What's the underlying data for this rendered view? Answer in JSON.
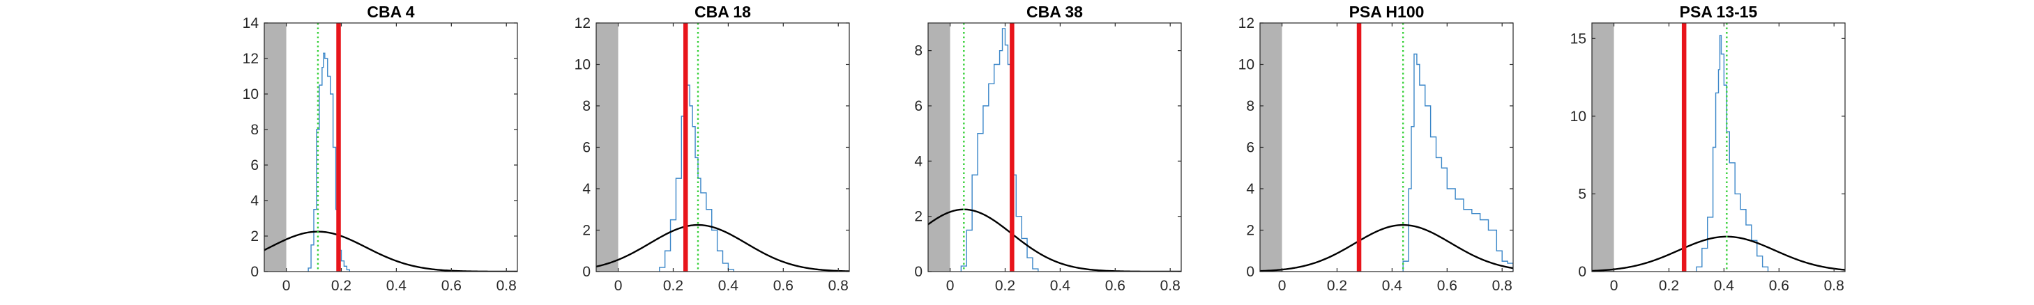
{
  "figure": {
    "background": "#ffffff",
    "axis_color": "#262626",
    "shade_color": "#b3b3b3",
    "hist_color": "#3a86c8",
    "gauss_color": "#000000",
    "red_color": "#e8141b",
    "green_color": "#39d13b"
  },
  "chart_data": [
    {
      "type": "line",
      "title": "CBA 4",
      "xlim": [
        -0.08,
        0.84
      ],
      "ylim": [
        0,
        14
      ],
      "xticks": [
        0,
        0.2,
        0.4,
        0.6,
        0.8
      ],
      "xtick_labels": [
        "0",
        "0.2",
        "0.4",
        "0.6",
        "0.8"
      ],
      "yticks": [
        0,
        2,
        4,
        6,
        8,
        10,
        12,
        14
      ],
      "ytick_labels": [
        "0",
        "2",
        "4",
        "6",
        "8",
        "10",
        "12",
        "14"
      ],
      "shaded_region": [
        -0.08,
        0
      ],
      "red_line_x": 0.19,
      "green_line_x": 0.115,
      "gaussian": {
        "mu": 0.115,
        "sigma": 0.175,
        "peak": 2.25
      },
      "histogram": {
        "x": [
          0.08,
          0.09,
          0.1,
          0.11,
          0.12,
          0.13,
          0.135,
          0.14,
          0.15,
          0.16,
          0.17,
          0.18,
          0.19,
          0.2,
          0.21,
          0.22
        ],
        "values": [
          0.2,
          1.5,
          3.5,
          8.0,
          10.5,
          11.5,
          12.3,
          12.0,
          11.0,
          10.0,
          7.0,
          3.5,
          1.2,
          0.6,
          0.3,
          0.1
        ]
      },
      "series": [
        {
          "name": "histogram",
          "color": "#3a86c8"
        },
        {
          "name": "gaussian",
          "color": "#000000"
        },
        {
          "name": "red threshold",
          "color": "#e8141b"
        },
        {
          "name": "green reference",
          "color": "#39d13b"
        }
      ]
    },
    {
      "type": "line",
      "title": "CBA 18",
      "xlim": [
        -0.08,
        0.84
      ],
      "ylim": [
        0,
        12
      ],
      "xticks": [
        0,
        0.2,
        0.4,
        0.6,
        0.8
      ],
      "xtick_labels": [
        "0",
        "0.2",
        "0.4",
        "0.6",
        "0.8"
      ],
      "yticks": [
        0,
        2,
        4,
        6,
        8,
        10,
        12
      ],
      "ytick_labels": [
        "0",
        "2",
        "4",
        "6",
        "8",
        "10",
        "12"
      ],
      "shaded_region": [
        -0.08,
        0
      ],
      "red_line_x": 0.245,
      "green_line_x": 0.29,
      "gaussian": {
        "mu": 0.29,
        "sigma": 0.175,
        "peak": 2.25
      },
      "histogram": {
        "x": [
          0.15,
          0.17,
          0.19,
          0.21,
          0.23,
          0.24,
          0.25,
          0.26,
          0.27,
          0.28,
          0.29,
          0.3,
          0.32,
          0.34,
          0.36,
          0.38,
          0.4
        ],
        "values": [
          0.2,
          1.0,
          2.5,
          4.5,
          7.5,
          8.7,
          9.0,
          8.0,
          7.0,
          5.5,
          4.5,
          3.8,
          3.0,
          2.0,
          1.0,
          0.4,
          0.1
        ]
      },
      "series": [
        {
          "name": "histogram",
          "color": "#3a86c8"
        },
        {
          "name": "gaussian",
          "color": "#000000"
        },
        {
          "name": "red threshold",
          "color": "#e8141b"
        },
        {
          "name": "green reference",
          "color": "#39d13b"
        }
      ]
    },
    {
      "type": "line",
      "title": "CBA 38",
      "xlim": [
        -0.08,
        0.84
      ],
      "ylim": [
        0,
        9
      ],
      "xticks": [
        0,
        0.2,
        0.4,
        0.6,
        0.8
      ],
      "xtick_labels": [
        "0",
        "0.2",
        "0.4",
        "0.6",
        "0.8"
      ],
      "yticks": [
        0,
        2,
        4,
        6,
        8
      ],
      "ytick_labels": [
        "0",
        "2",
        "4",
        "6",
        "8"
      ],
      "shaded_region": [
        -0.08,
        0
      ],
      "red_line_x": 0.225,
      "green_line_x": 0.05,
      "gaussian": {
        "mu": 0.05,
        "sigma": 0.175,
        "peak": 2.25
      },
      "histogram": {
        "x": [
          0.04,
          0.06,
          0.08,
          0.1,
          0.12,
          0.14,
          0.16,
          0.18,
          0.19,
          0.2,
          0.21,
          0.22,
          0.23,
          0.24,
          0.26,
          0.28,
          0.3
        ],
        "values": [
          0.2,
          1.5,
          3.5,
          5.0,
          6.0,
          6.8,
          7.5,
          8.0,
          8.8,
          8.2,
          7.5,
          6.0,
          3.5,
          2.0,
          1.2,
          0.5,
          0.1
        ]
      },
      "series": [
        {
          "name": "histogram",
          "color": "#3a86c8"
        },
        {
          "name": "gaussian",
          "color": "#000000"
        },
        {
          "name": "red threshold",
          "color": "#e8141b"
        },
        {
          "name": "green reference",
          "color": "#39d13b"
        }
      ]
    },
    {
      "type": "line",
      "title": "PSA H100",
      "xlim": [
        -0.08,
        0.84
      ],
      "ylim": [
        0,
        12
      ],
      "xticks": [
        0,
        0.2,
        0.4,
        0.6,
        0.8
      ],
      "xtick_labels": [
        "0",
        "0.2",
        "0.4",
        "0.6",
        "0.8"
      ],
      "yticks": [
        0,
        2,
        4,
        6,
        8,
        10,
        12
      ],
      "ytick_labels": [
        "0",
        "2",
        "4",
        "6",
        "8",
        "10",
        "12"
      ],
      "shaded_region": [
        -0.08,
        0
      ],
      "red_line_x": 0.28,
      "green_line_x": 0.44,
      "gaussian": {
        "mu": 0.44,
        "sigma": 0.175,
        "peak": 2.25
      },
      "histogram": {
        "x": [
          0.44,
          0.46,
          0.47,
          0.48,
          0.49,
          0.5,
          0.52,
          0.54,
          0.56,
          0.58,
          0.6,
          0.63,
          0.66,
          0.69,
          0.72,
          0.75,
          0.78,
          0.8,
          0.82
        ],
        "values": [
          0.5,
          4.0,
          7.0,
          10.5,
          10.0,
          9.0,
          8.0,
          6.5,
          5.5,
          5.0,
          4.0,
          3.5,
          3.0,
          2.8,
          2.5,
          2.0,
          1.0,
          0.5,
          0.4
        ]
      },
      "series": [
        {
          "name": "histogram",
          "color": "#3a86c8"
        },
        {
          "name": "gaussian",
          "color": "#000000"
        },
        {
          "name": "red threshold",
          "color": "#e8141b"
        },
        {
          "name": "green reference",
          "color": "#39d13b"
        }
      ]
    },
    {
      "type": "line",
      "title": "PSA 13-15",
      "xlim": [
        -0.08,
        0.84
      ],
      "ylim": [
        0,
        16
      ],
      "xticks": [
        0,
        0.2,
        0.4,
        0.6,
        0.8
      ],
      "xtick_labels": [
        "0",
        "0.2",
        "0.4",
        "0.6",
        "0.8"
      ],
      "yticks": [
        0,
        5,
        10,
        15
      ],
      "ytick_labels": [
        "0",
        "5",
        "10",
        "15"
      ],
      "shaded_region": [
        -0.08,
        0
      ],
      "red_line_x": 0.255,
      "green_line_x": 0.41,
      "gaussian": {
        "mu": 0.41,
        "sigma": 0.175,
        "peak": 2.25
      },
      "histogram": {
        "x": [
          0.3,
          0.32,
          0.34,
          0.36,
          0.37,
          0.38,
          0.385,
          0.39,
          0.4,
          0.41,
          0.42,
          0.44,
          0.46,
          0.48,
          0.5,
          0.52,
          0.54
        ],
        "values": [
          0.3,
          1.5,
          3.5,
          8.0,
          11.5,
          13.0,
          15.2,
          14.0,
          12.0,
          9.0,
          7.0,
          5.0,
          4.0,
          3.0,
          2.0,
          1.0,
          0.3
        ]
      },
      "series": [
        {
          "name": "histogram",
          "color": "#3a86c8"
        },
        {
          "name": "gaussian",
          "color": "#000000"
        },
        {
          "name": "red threshold",
          "color": "#e8141b"
        },
        {
          "name": "green reference",
          "color": "#39d13b"
        }
      ]
    }
  ]
}
